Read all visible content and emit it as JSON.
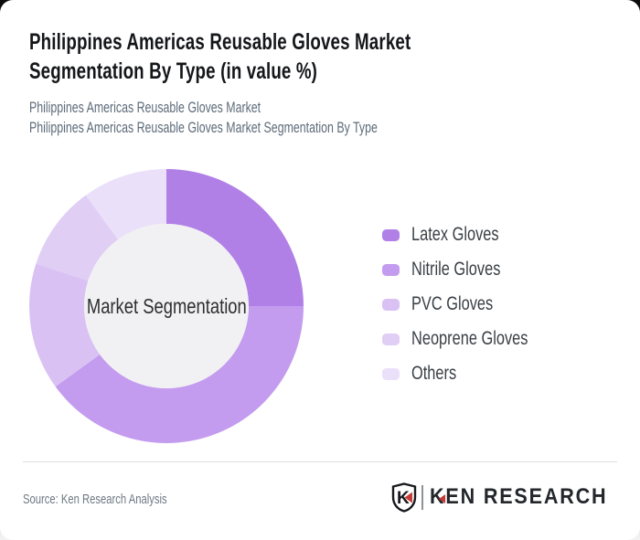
{
  "page": {
    "title_line1": "Philippines Americas Reusable Gloves Market",
    "title_line2": "Segmentation By Type (in value %)",
    "subtitle_line1": "Philippines Americas Reusable Gloves Market",
    "subtitle_line2": "Philippines Americas Reusable Gloves Market Segmentation By Type",
    "source": "Source: Ken Research Analysis"
  },
  "chart_data": {
    "type": "pie",
    "variant": "donut",
    "title": "Philippines Americas Reusable Gloves Market Segmentation By Type (in value %)",
    "center_label": "Market Segmentation",
    "unit": "value %",
    "categories": [
      "Latex Gloves",
      "Nitrile Gloves",
      "PVC Gloves",
      "Neoprene Gloves",
      "Others"
    ],
    "values": [
      25,
      40,
      15,
      10,
      10
    ],
    "colors": [
      "#B180E7",
      "#C49CEF",
      "#D9C1F3",
      "#E0CEF5",
      "#EBE0FA"
    ],
    "inner_hole_color": "#F1F1F3",
    "start_angle_deg": 0,
    "direction": "clockwise",
    "legend_position": "right"
  },
  "branding": {
    "logo_monogram": "K",
    "logo_text_k": "K",
    "logo_text_rest": "EN RESEARCH",
    "logo_red": "#C63B36",
    "logo_dark": "#17191D"
  }
}
